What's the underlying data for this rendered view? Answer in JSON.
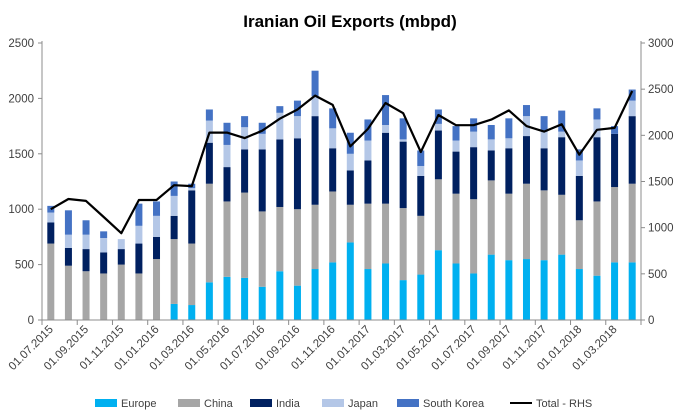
{
  "chart_data": {
    "type": "bar",
    "stacked": true,
    "title": "Iranian Oil Exports (mbpd)",
    "x_tick_labels": [
      "01.07.2015",
      "01.09.2015",
      "01.11.2015",
      "01.01.2016",
      "01.03.2016",
      "01.05.2016",
      "01.07.2016",
      "01.09.2016",
      "01.11.2016",
      "01.01.2017",
      "01.03.2017",
      "01.05.2017",
      "01.07.2017",
      "01.09.2017",
      "01.11.2017",
      "01.01.2018",
      "01.03.2018"
    ],
    "months_per_tick": 2,
    "y_left": {
      "lim": [
        0,
        2500
      ],
      "ticks": [
        "0",
        "500",
        "1000",
        "1500",
        "2000",
        "2500"
      ]
    },
    "y_right": {
      "lim": [
        0,
        3000
      ],
      "ticks": [
        "0",
        "500",
        "1000",
        "1500",
        "2000",
        "2500",
        "3000"
      ]
    },
    "legend_position": "bottom",
    "series": [
      {
        "name": "Europe",
        "color": "#00B0F0",
        "axis": "left",
        "values": [
          0,
          0,
          0,
          0,
          0,
          0,
          0,
          145,
          135,
          340,
          390,
          380,
          300,
          440,
          310,
          460,
          520,
          700,
          460,
          510,
          360,
          410,
          630,
          510,
          420,
          590,
          540,
          550,
          540,
          590,
          460,
          400,
          520,
          520
        ]
      },
      {
        "name": "China",
        "color": "#A6A6A6",
        "axis": "left",
        "values": [
          690,
          490,
          440,
          420,
          500,
          420,
          550,
          585,
          555,
          890,
          680,
          770,
          680,
          580,
          690,
          580,
          640,
          340,
          590,
          540,
          650,
          530,
          640,
          630,
          670,
          670,
          600,
          680,
          630,
          540,
          440,
          670,
          680,
          710
        ]
      },
      {
        "name": "India",
        "color": "#002060",
        "axis": "left",
        "values": [
          190,
          160,
          200,
          190,
          140,
          270,
          200,
          210,
          480,
          370,
          310,
          390,
          560,
          610,
          640,
          800,
          390,
          310,
          390,
          640,
          600,
          360,
          440,
          380,
          470,
          270,
          410,
          430,
          380,
          520,
          400,
          580,
          480,
          610
        ]
      },
      {
        "name": "Japan",
        "color": "#B4C7E7",
        "axis": "left",
        "values": [
          90,
          120,
          130,
          130,
          90,
          160,
          190,
          180,
          20,
          200,
          200,
          200,
          140,
          240,
          200,
          180,
          180,
          150,
          180,
          70,
          20,
          90,
          60,
          100,
          140,
          100,
          90,
          180,
          150,
          50,
          140,
          160,
          0,
          140
        ]
      },
      {
        "name": "South Korea",
        "color": "#4472C4",
        "axis": "left",
        "values": [
          60,
          220,
          130,
          60,
          0,
          200,
          130,
          130,
          40,
          100,
          200,
          100,
          100,
          60,
          140,
          230,
          180,
          190,
          190,
          270,
          190,
          140,
          130,
          130,
          120,
          130,
          180,
          100,
          140,
          190,
          100,
          100,
          70,
          100
        ]
      }
    ],
    "line": {
      "name": "Total - RHS",
      "color": "#000000",
      "axis": "right",
      "values": [
        1200,
        1310,
        1290,
        1115,
        940,
        1300,
        1300,
        1460,
        1450,
        2030,
        2030,
        1970,
        2050,
        2180,
        2280,
        2430,
        2330,
        1880,
        2070,
        2350,
        2240,
        1820,
        2220,
        2110,
        2110,
        2170,
        2270,
        2100,
        2040,
        2120,
        1790,
        2060,
        2080,
        2480
      ]
    }
  }
}
